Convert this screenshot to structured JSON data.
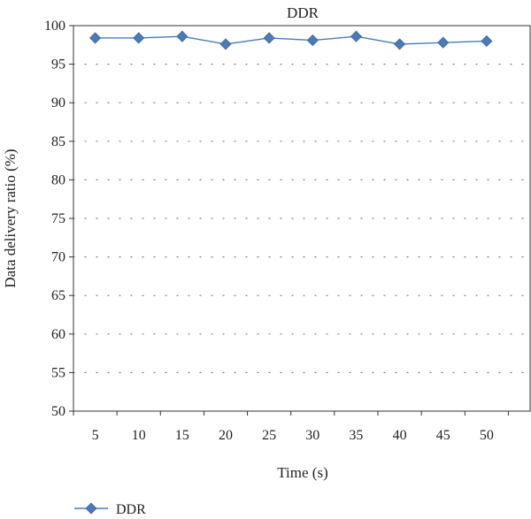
{
  "chart_data": {
    "type": "line",
    "title": "DDR",
    "xlabel": "Time (s)",
    "ylabel": "Data delivery ratio (%)",
    "categories": [
      "5",
      "10",
      "15",
      "20",
      "25",
      "30",
      "35",
      "40",
      "45",
      "50"
    ],
    "ylim": [
      50,
      100
    ],
    "yticks": [
      "50",
      "55",
      "60",
      "65",
      "70",
      "75",
      "80",
      "85",
      "90",
      "95",
      "100"
    ],
    "grid": true,
    "legend": "bottom-left",
    "series": [
      {
        "name": "DDR",
        "values": [
          98.4,
          98.4,
          98.6,
          97.6,
          98.4,
          98.1,
          98.6,
          97.6,
          97.8,
          98.0
        ],
        "color": "#4a7ab8"
      }
    ]
  }
}
